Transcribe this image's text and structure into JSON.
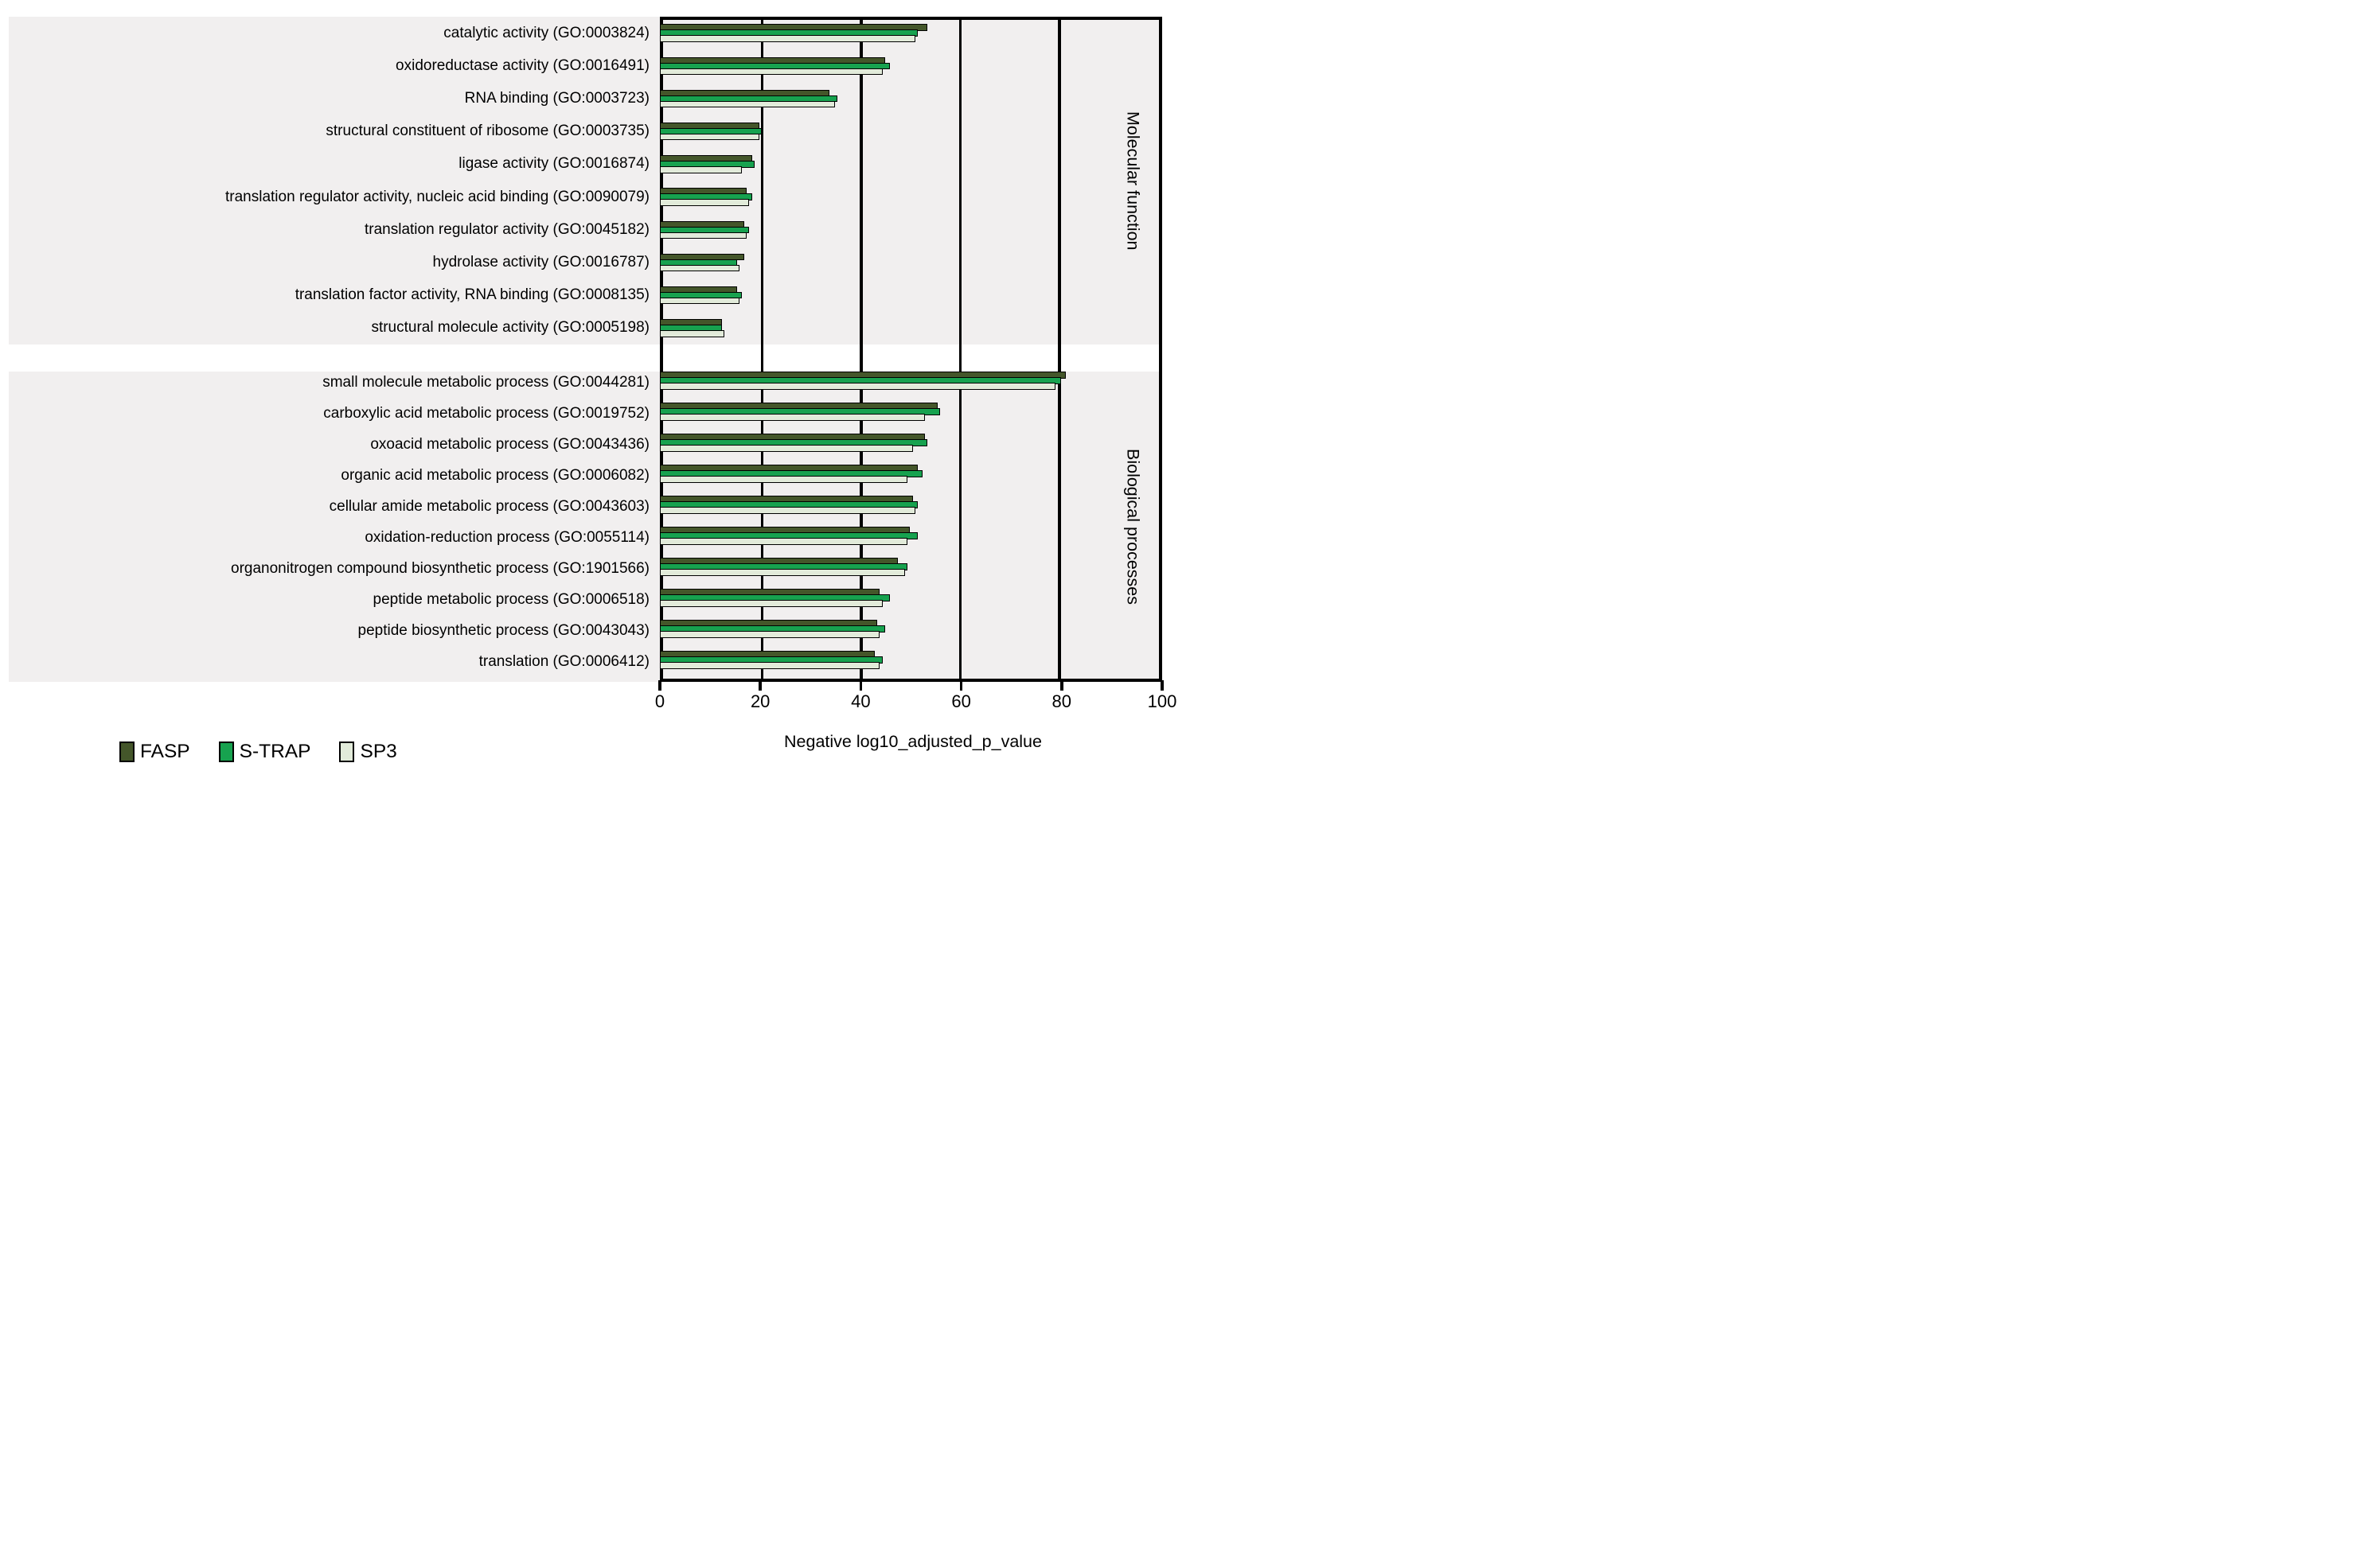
{
  "chart_data": {
    "type": "bar",
    "orientation": "horizontal",
    "title": "",
    "xlabel": "Negative log10_adjusted_p_value",
    "ylabel": "",
    "xlim": [
      0,
      100
    ],
    "x_ticks": [
      0,
      20,
      40,
      60,
      80,
      100
    ],
    "grid": "vertical gridlines at 20, 40, 60, 80, 100",
    "legend_position": "bottom-left",
    "panel_background": "#f1efef",
    "series": [
      "FASP",
      "S-TRAP",
      "SP3"
    ],
    "series_colors": [
      "#44562a",
      "#17a24f",
      "#e2ebda"
    ],
    "panels": [
      {
        "section_label": "Molecular function",
        "rows": [
          {
            "category": "catalytic activity (GO:0003824)",
            "values": [
              53,
              51,
              50.5
            ]
          },
          {
            "category": "oxidoreductase activity (GO:0016491)",
            "values": [
              44.5,
              45.5,
              44
            ]
          },
          {
            "category": "RNA binding (GO:0003723)",
            "values": [
              33.5,
              35,
              34.5
            ]
          },
          {
            "category": "structural constituent of ribosome (GO:0003735)",
            "values": [
              19.5,
              20,
              19.5
            ]
          },
          {
            "category": "ligase activity (GO:0016874)",
            "values": [
              18,
              18.5,
              16
            ]
          },
          {
            "category": "translation regulator activity, nucleic acid binding (GO:0090079)",
            "values": [
              17,
              18,
              17.5
            ]
          },
          {
            "category": "translation regulator activity (GO:0045182)",
            "values": [
              16.5,
              17.5,
              17
            ]
          },
          {
            "category": "hydrolase activity (GO:0016787)",
            "values": [
              16.5,
              15,
              15.5
            ]
          },
          {
            "category": "translation factor activity, RNA binding (GO:0008135)",
            "values": [
              15,
              16,
              15.5
            ]
          },
          {
            "category": "structural molecule activity (GO:0005198)",
            "values": [
              12,
              12,
              12.5
            ]
          }
        ]
      },
      {
        "section_label": "Biological processes",
        "rows": [
          {
            "category": "small molecule metabolic process (GO:0044281)",
            "values": [
              80.5,
              79.5,
              78.5
            ]
          },
          {
            "category": "carboxylic acid metabolic process (GO:0019752)",
            "values": [
              55,
              55.5,
              52.5
            ]
          },
          {
            "category": "oxoacid metabolic process (GO:0043436)",
            "values": [
              52.5,
              53,
              50
            ]
          },
          {
            "category": "organic acid metabolic process (GO:0006082)",
            "values": [
              51,
              52,
              49
            ]
          },
          {
            "category": "cellular amide metabolic process (GO:0043603)",
            "values": [
              50,
              51,
              50.5
            ]
          },
          {
            "category": "oxidation-reduction process (GO:0055114)",
            "values": [
              49.5,
              51,
              49
            ]
          },
          {
            "category": "organonitrogen compound biosynthetic process (GO:1901566)",
            "values": [
              47,
              49,
              48.5
            ]
          },
          {
            "category": "peptide metabolic process (GO:0006518)",
            "values": [
              43.5,
              45.5,
              44
            ]
          },
          {
            "category": "peptide biosynthetic process (GO:0043043)",
            "values": [
              43,
              44.5,
              43.5
            ]
          },
          {
            "category": "translation (GO:0006412)",
            "values": [
              42.5,
              44,
              43.5
            ]
          }
        ]
      }
    ]
  },
  "legend": {
    "items": [
      {
        "label": "FASP",
        "color": "#44562a"
      },
      {
        "label": "S-TRAP",
        "color": "#17a24f"
      },
      {
        "label": "SP3",
        "color": "#e2ebda"
      }
    ]
  },
  "axis": {
    "title": "Negative log10_adjusted_p_value",
    "tick_labels": [
      "0",
      "20",
      "40",
      "60",
      "80",
      "100"
    ]
  }
}
